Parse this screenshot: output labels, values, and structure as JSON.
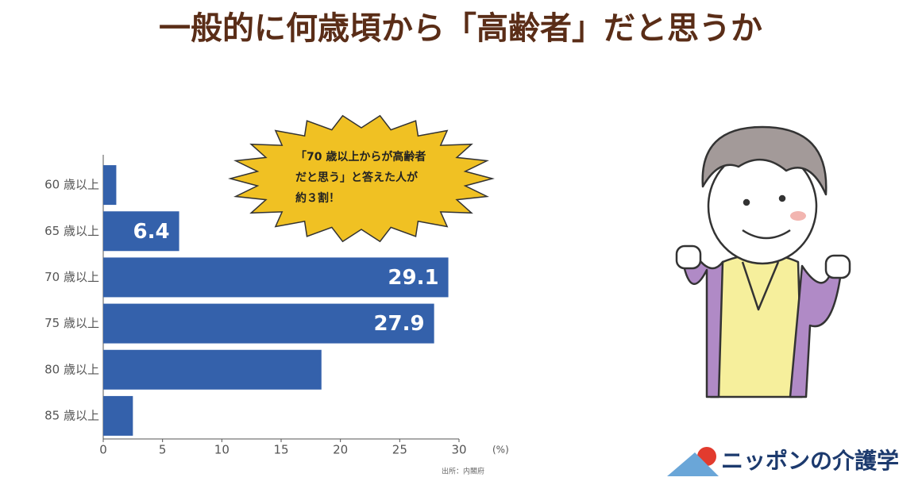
{
  "chart_data": {
    "type": "barh",
    "title": "一般的に何歳頃から「高齢者」だと思うか",
    "categories": [
      "60 歳以上",
      "65 歳以上",
      "70 歳以上",
      "75 歳以上",
      "80 歳以上",
      "85 歳以上"
    ],
    "values": [
      1.1,
      6.4,
      29.1,
      27.9,
      18.4,
      2.5
    ],
    "value_labels": [
      null,
      "6.4",
      "29.1",
      "27.9",
      null,
      null
    ],
    "color": "#3461ab",
    "xlim": [
      0,
      30
    ],
    "xticks": [
      0,
      5,
      10,
      15,
      20,
      25,
      30
    ],
    "x_label": "(%)",
    "source": "出所：内閣府",
    "annotation": [
      "「70 歳以上からが高齢者",
      "だと思う」と答えた人が",
      "約３割！"
    ],
    "logo": "ニッポンの介護学"
  }
}
